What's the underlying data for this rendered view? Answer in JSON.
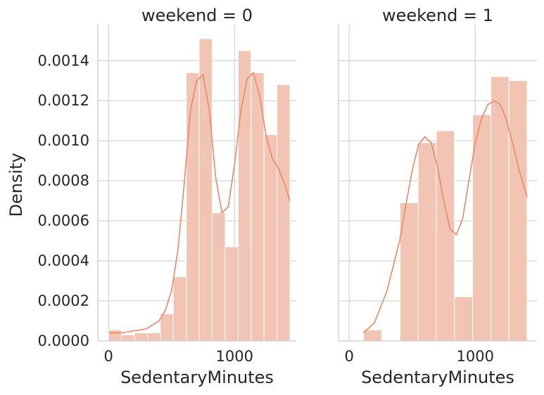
{
  "colors": {
    "bar": "#f2c4b3",
    "line": "#e8896a"
  },
  "chart_data": {
    "type": "bar",
    "ylabel": "Density",
    "ylim": [
      0,
      0.00158
    ],
    "yticks": [
      0,
      0.0002,
      0.0004,
      0.0006,
      0.0008,
      0.001,
      0.0012,
      0.0014
    ],
    "ytick_labels": [
      "0.0000",
      "0.0002",
      "0.0004",
      "0.0006",
      "0.0008",
      "0.0010",
      "0.0012",
      "0.0014"
    ],
    "xticks": [
      0,
      1000
    ],
    "xtick_labels": [
      "0",
      "1000"
    ],
    "xlim": [
      -85,
      1490
    ],
    "grid": true,
    "panels": [
      {
        "title": "weekend = 0",
        "xlabel": "SedentaryMinutes",
        "bins": [
          {
            "x0": 0,
            "x1": 103,
            "density": 5.5e-05
          },
          {
            "x0": 103,
            "x1": 206,
            "density": 3e-05
          },
          {
            "x0": 206,
            "x1": 309,
            "density": 4e-05
          },
          {
            "x0": 309,
            "x1": 411,
            "density": 4e-05
          },
          {
            "x0": 411,
            "x1": 514,
            "density": 0.000135
          },
          {
            "x0": 514,
            "x1": 617,
            "density": 0.00032
          },
          {
            "x0": 617,
            "x1": 720,
            "density": 0.00134
          },
          {
            "x0": 720,
            "x1": 823,
            "density": 0.00151
          },
          {
            "x0": 823,
            "x1": 926,
            "density": 0.00064
          },
          {
            "x0": 926,
            "x1": 1029,
            "density": 0.00047
          },
          {
            "x0": 1029,
            "x1": 1131,
            "density": 0.00145
          },
          {
            "x0": 1131,
            "x1": 1234,
            "density": 0.00134
          },
          {
            "x0": 1234,
            "x1": 1337,
            "density": 0.00103
          },
          {
            "x0": 1337,
            "x1": 1440,
            "density": 0.00128
          }
        ],
        "kde": {
          "x": [
            0,
            100,
            200,
            300,
            400,
            450,
            500,
            550,
            600,
            650,
            700,
            750,
            800,
            850,
            900,
            950,
            1000,
            1050,
            1100,
            1150,
            1200,
            1250,
            1300,
            1350,
            1400,
            1440
          ],
          "y": [
            4e-05,
            4e-05,
            5e-05,
            6e-05,
            0.0001,
            0.00015,
            0.00025,
            0.00045,
            0.00078,
            0.00115,
            0.0013,
            0.00133,
            0.00115,
            0.00082,
            0.00064,
            0.00067,
            0.00088,
            0.00115,
            0.00131,
            0.00134,
            0.00122,
            0.00103,
            0.00091,
            0.00086,
            0.00078,
            0.0007
          ]
        }
      },
      {
        "title": "weekend = 1",
        "xlabel": "SedentaryMinutes",
        "bins": [
          {
            "x0": 114,
            "x1": 258,
            "density": 5.5e-05
          },
          {
            "x0": 258,
            "x1": 403,
            "density": 0
          },
          {
            "x0": 403,
            "x1": 547,
            "density": 0.00069
          },
          {
            "x0": 547,
            "x1": 691,
            "density": 0.00099
          },
          {
            "x0": 691,
            "x1": 835,
            "density": 0.00105
          },
          {
            "x0": 835,
            "x1": 979,
            "density": 0.00022
          },
          {
            "x0": 979,
            "x1": 1124,
            "density": 0.00113
          },
          {
            "x0": 1124,
            "x1": 1268,
            "density": 0.00132
          },
          {
            "x0": 1268,
            "x1": 1412,
            "density": 0.0013
          }
        ],
        "kde": {
          "x": [
            114,
            200,
            300,
            400,
            450,
            500,
            550,
            600,
            650,
            700,
            750,
            800,
            850,
            900,
            950,
            1000,
            1050,
            1100,
            1150,
            1200,
            1250,
            1300,
            1350,
            1412
          ],
          "y": [
            4e-05,
            9e-05,
            0.00025,
            0.0005,
            0.00068,
            0.00085,
            0.00098,
            0.00102,
            0.00099,
            0.00087,
            0.0007,
            0.00056,
            0.00053,
            0.00061,
            0.0008,
            0.00099,
            0.00111,
            0.00118,
            0.0012,
            0.00118,
            0.0011,
            0.00098,
            0.00085,
            0.00072
          ]
        }
      }
    ]
  }
}
